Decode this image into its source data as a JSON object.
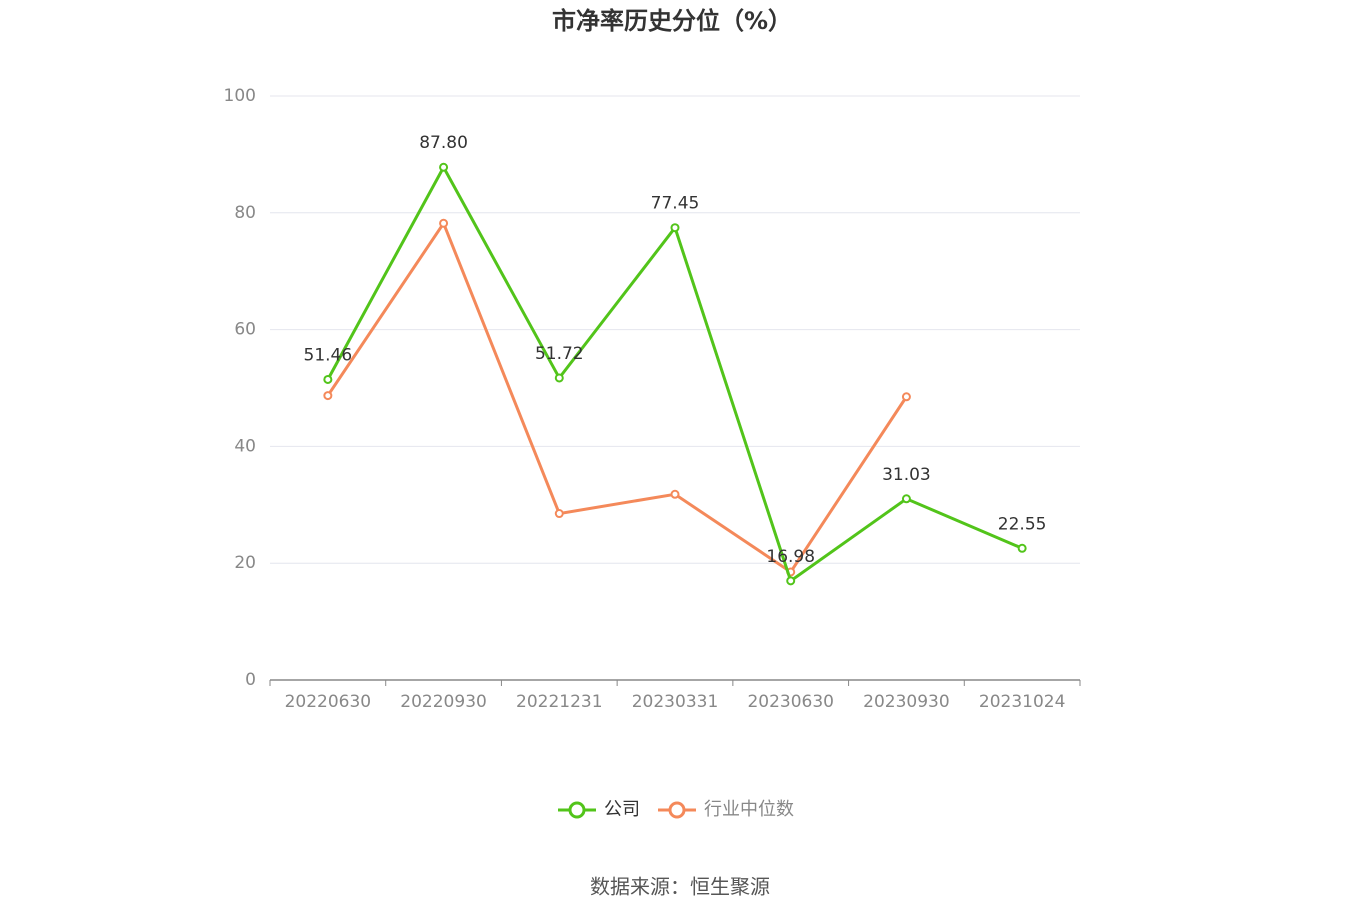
{
  "chart_data": {
    "type": "line",
    "title": "市净率历史分位（%）",
    "categories": [
      "20220630",
      "20220930",
      "20221231",
      "20230331",
      "20230630",
      "20230930",
      "20231024"
    ],
    "series": [
      {
        "name": "公司",
        "color": "#52c41a",
        "values": [
          51.46,
          87.8,
          51.72,
          77.45,
          16.98,
          31.03,
          22.55
        ],
        "value_labels": [
          "51.46",
          "87.80",
          "51.72",
          "77.45",
          "16.98",
          "31.03",
          "22.55"
        ]
      },
      {
        "name": "行业中位数",
        "color": "#f4895a",
        "values": [
          48.7,
          78.2,
          28.5,
          31.8,
          18.5,
          48.5,
          null
        ]
      }
    ],
    "ylim": [
      0,
      100
    ],
    "yticks": [
      0,
      20,
      40,
      60,
      80,
      100
    ],
    "grid": true,
    "source": "数据来源：恒生聚源"
  }
}
